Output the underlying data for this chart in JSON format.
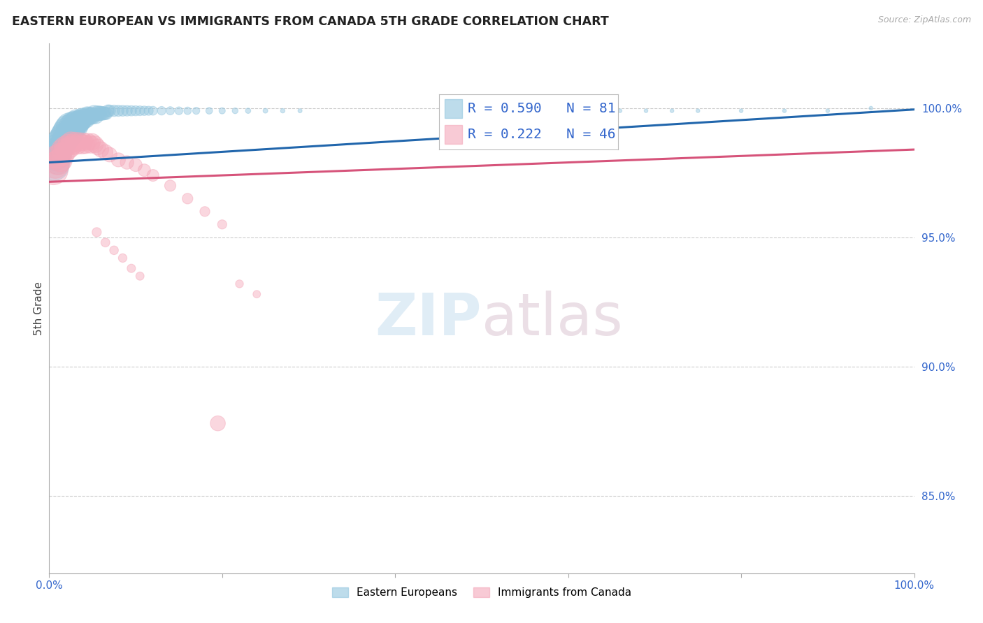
{
  "title": "EASTERN EUROPEAN VS IMMIGRANTS FROM CANADA 5TH GRADE CORRELATION CHART",
  "source": "Source: ZipAtlas.com",
  "ylabel": "5th Grade",
  "legend_blue_label": "Eastern Europeans",
  "legend_pink_label": "Immigrants from Canada",
  "r_blue": 0.59,
  "n_blue": 81,
  "r_pink": 0.222,
  "n_pink": 46,
  "blue_color": "#92c5de",
  "pink_color": "#f4a7b9",
  "trend_blue_color": "#2166ac",
  "trend_pink_color": "#d6537a",
  "xlim": [
    0.0,
    1.0
  ],
  "ylim": [
    0.82,
    1.025
  ],
  "blue_scatter_x": [
    0.005,
    0.007,
    0.008,
    0.009,
    0.01,
    0.01,
    0.011,
    0.012,
    0.013,
    0.014,
    0.015,
    0.016,
    0.017,
    0.018,
    0.019,
    0.02,
    0.021,
    0.022,
    0.023,
    0.024,
    0.025,
    0.026,
    0.027,
    0.028,
    0.029,
    0.03,
    0.031,
    0.032,
    0.033,
    0.035,
    0.036,
    0.038,
    0.04,
    0.042,
    0.044,
    0.046,
    0.048,
    0.05,
    0.052,
    0.054,
    0.056,
    0.058,
    0.06,
    0.062,
    0.064,
    0.066,
    0.068,
    0.07,
    0.075,
    0.08,
    0.085,
    0.09,
    0.095,
    0.1,
    0.105,
    0.11,
    0.115,
    0.12,
    0.13,
    0.14,
    0.15,
    0.16,
    0.17,
    0.185,
    0.2,
    0.215,
    0.23,
    0.25,
    0.27,
    0.29,
    0.57,
    0.6,
    0.63,
    0.66,
    0.69,
    0.72,
    0.75,
    0.8,
    0.85,
    0.9,
    0.95
  ],
  "blue_scatter_y": [
    0.978,
    0.981,
    0.984,
    0.982,
    0.985,
    0.979,
    0.983,
    0.987,
    0.984,
    0.988,
    0.986,
    0.989,
    0.987,
    0.99,
    0.988,
    0.991,
    0.989,
    0.992,
    0.99,
    0.993,
    0.991,
    0.993,
    0.992,
    0.994,
    0.993,
    0.994,
    0.993,
    0.995,
    0.994,
    0.995,
    0.995,
    0.996,
    0.996,
    0.996,
    0.997,
    0.997,
    0.997,
    0.997,
    0.998,
    0.997,
    0.998,
    0.998,
    0.998,
    0.998,
    0.998,
    0.998,
    0.999,
    0.999,
    0.999,
    0.999,
    0.999,
    0.999,
    0.999,
    0.999,
    0.999,
    0.999,
    0.999,
    0.999,
    0.999,
    0.999,
    0.999,
    0.999,
    0.999,
    0.999,
    0.999,
    0.999,
    0.999,
    0.999,
    0.999,
    0.999,
    0.999,
    0.999,
    0.999,
    0.999,
    0.999,
    0.999,
    0.999,
    0.999,
    0.999,
    0.999,
    1.0
  ],
  "blue_scatter_size": [
    350,
    250,
    200,
    300,
    250,
    200,
    180,
    220,
    200,
    230,
    210,
    240,
    220,
    250,
    230,
    260,
    240,
    270,
    250,
    260,
    240,
    230,
    220,
    210,
    200,
    210,
    200,
    190,
    180,
    170,
    160,
    150,
    140,
    130,
    120,
    110,
    100,
    95,
    90,
    85,
    80,
    75,
    70,
    65,
    60,
    55,
    50,
    48,
    46,
    44,
    42,
    40,
    38,
    36,
    34,
    32,
    30,
    28,
    26,
    24,
    22,
    20,
    18,
    16,
    14,
    12,
    10,
    8,
    7,
    6,
    5,
    5,
    5,
    5,
    5,
    5,
    5,
    5,
    5,
    5,
    5
  ],
  "pink_scatter_x": [
    0.005,
    0.007,
    0.008,
    0.01,
    0.012,
    0.013,
    0.015,
    0.016,
    0.018,
    0.02,
    0.022,
    0.024,
    0.025,
    0.027,
    0.03,
    0.032,
    0.035,
    0.038,
    0.04,
    0.042,
    0.045,
    0.048,
    0.05,
    0.053,
    0.056,
    0.06,
    0.065,
    0.07,
    0.08,
    0.09,
    0.1,
    0.11,
    0.12,
    0.14,
    0.16,
    0.18,
    0.2,
    0.055,
    0.065,
    0.075,
    0.085,
    0.095,
    0.105,
    0.22,
    0.24,
    0.195
  ],
  "pink_scatter_y": [
    0.976,
    0.978,
    0.981,
    0.979,
    0.982,
    0.98,
    0.984,
    0.982,
    0.985,
    0.984,
    0.986,
    0.985,
    0.987,
    0.986,
    0.987,
    0.986,
    0.987,
    0.986,
    0.987,
    0.986,
    0.987,
    0.986,
    0.987,
    0.986,
    0.985,
    0.984,
    0.983,
    0.982,
    0.98,
    0.979,
    0.978,
    0.976,
    0.974,
    0.97,
    0.965,
    0.96,
    0.955,
    0.952,
    0.948,
    0.945,
    0.942,
    0.938,
    0.935,
    0.932,
    0.928,
    0.878
  ],
  "pink_scatter_size": [
    300,
    250,
    200,
    220,
    180,
    200,
    160,
    180,
    160,
    170,
    150,
    160,
    140,
    150,
    130,
    140,
    120,
    130,
    110,
    120,
    100,
    110,
    95,
    100,
    90,
    85,
    80,
    75,
    70,
    65,
    60,
    55,
    50,
    45,
    40,
    35,
    30,
    30,
    28,
    27,
    26,
    25,
    24,
    22,
    20,
    80
  ]
}
